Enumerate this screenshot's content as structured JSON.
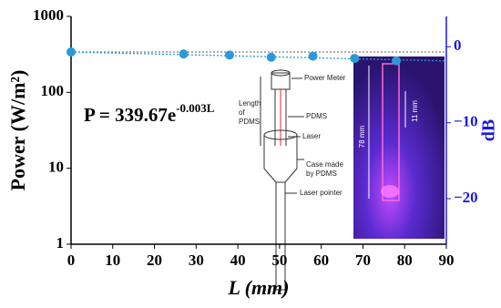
{
  "chart_data": {
    "type": "scatter",
    "x_label": "L (mm)",
    "y_label": "Power (W/m²)",
    "y2_label": "dB",
    "annotation": {
      "base": "P = 339.67e",
      "exponent": "-0.003L"
    },
    "xlim": [
      0,
      90
    ],
    "xticks": [
      0,
      10,
      20,
      30,
      40,
      50,
      60,
      70,
      80,
      90
    ],
    "ylim": [
      1,
      1000
    ],
    "yticks": [
      1,
      10,
      100,
      1000
    ],
    "yscale": "log",
    "y2lim": [
      -26,
      4
    ],
    "y2ticks": [
      0,
      {
        "value": -10,
        "label": "−10"
      },
      {
        "value": -20,
        "label": "−20"
      }
    ],
    "y2_color": "#1a1adb",
    "series": [
      {
        "color": "#2b9ad8",
        "x": [
          0,
          27,
          38,
          48,
          58,
          68,
          78
        ],
        "values": [
          340,
          320,
          310,
          290,
          300,
          280,
          260
        ]
      }
    ],
    "trend_lines": [
      {
        "color": "#888888",
        "x": [
          0,
          90
        ],
        "values": [
          340,
          340
        ]
      },
      {
        "color": "#2b9ad8",
        "x": [
          0,
          90
        ],
        "values": [
          340,
          259
        ]
      }
    ],
    "inset_labels": [
      "Power Meter",
      "PDMS",
      "Laser",
      "Laser pointer"
    ],
    "inset_multiline": [
      [
        "Length",
        "of",
        "PDMS"
      ],
      [
        "Case made",
        "by PDMS"
      ]
    ],
    "photo_labels": [
      "78 mm",
      "11 mm"
    ]
  }
}
